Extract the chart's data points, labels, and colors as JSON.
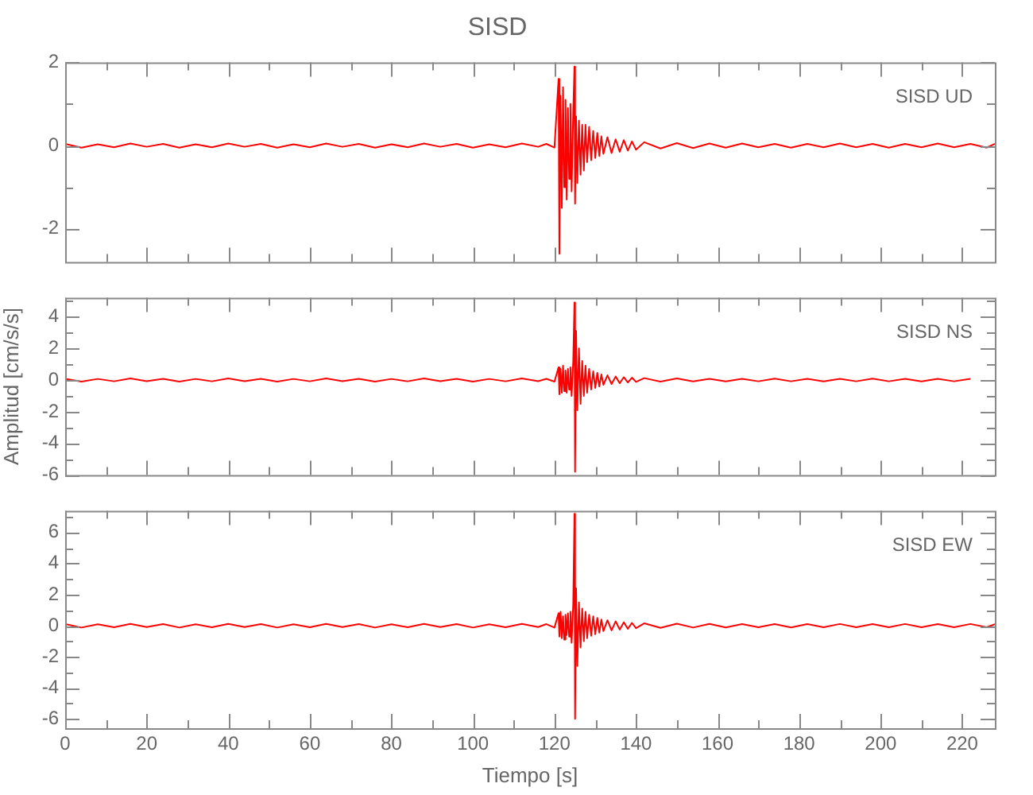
{
  "chart_data": [
    {
      "type": "line",
      "title": "SISD",
      "annotations": [
        "SISD UD"
      ],
      "tick_labels": "y",
      "xlim": [
        0,
        228
      ],
      "xticks": [
        0,
        {
          "value": 10,
          "label": null
        },
        20,
        {
          "value": 30,
          "label": null
        },
        40,
        {
          "value": 50,
          "label": null
        },
        60,
        {
          "value": 70,
          "label": null
        },
        80,
        {
          "value": 90,
          "label": null
        },
        100,
        {
          "value": 110,
          "label": null
        },
        120,
        {
          "value": 130,
          "label": null
        },
        140,
        {
          "value": 150,
          "label": null
        },
        160,
        {
          "value": 170,
          "label": null
        },
        180,
        {
          "value": 190,
          "label": null
        },
        200,
        {
          "value": 210,
          "label": null
        },
        220
      ],
      "ylim": [
        -2.8,
        2.0
      ],
      "yticks": [
        2,
        {
          "value": 1,
          "label": null
        },
        0,
        {
          "value": -1,
          "label": null
        },
        -2
      ],
      "series": [
        {
          "color": "#ff0000",
          "x": [
            0,
            4,
            8,
            12,
            16,
            20,
            24,
            28,
            32,
            36,
            40,
            44,
            48,
            52,
            56,
            60,
            64,
            68,
            72,
            76,
            80,
            84,
            88,
            92,
            96,
            100,
            104,
            108,
            112,
            116,
            118,
            120,
            121,
            121.2,
            121.5,
            121.8,
            122.1,
            122.4,
            122.7,
            123,
            123.3,
            123.6,
            123.9,
            124.2,
            124.6,
            124.9,
            125.05,
            125.3,
            125.6,
            126,
            126.4,
            126.8,
            127.2,
            127.6,
            128,
            128.5,
            129,
            129.5,
            130,
            130.5,
            131,
            131.5,
            132,
            133,
            134,
            135,
            136,
            137,
            138,
            139,
            140,
            142,
            146,
            150,
            154,
            158,
            162,
            166,
            170,
            174,
            178,
            182,
            186,
            190,
            194,
            198,
            202,
            206,
            210,
            214,
            218,
            222,
            226,
            228
          ],
          "values": [
            0.04,
            -0.05,
            0.03,
            -0.04,
            0.05,
            -0.03,
            0.04,
            -0.05,
            0.03,
            -0.04,
            0.05,
            -0.03,
            0.04,
            -0.05,
            0.03,
            -0.04,
            0.05,
            -0.03,
            0.04,
            -0.05,
            0.03,
            -0.04,
            0.05,
            -0.03,
            0.04,
            -0.05,
            0.03,
            -0.04,
            0.05,
            -0.03,
            0.04,
            -0.05,
            1.6,
            -2.6,
            1.2,
            -1.5,
            1.4,
            -1.0,
            1.1,
            -1.3,
            0.9,
            -0.8,
            1.0,
            -1.1,
            0.8,
            1.9,
            -1.4,
            0.7,
            -0.9,
            0.6,
            -0.7,
            0.5,
            -0.6,
            0.5,
            -0.4,
            0.45,
            -0.35,
            0.35,
            -0.3,
            0.3,
            -0.25,
            0.22,
            -0.2,
            0.2,
            -0.18,
            0.15,
            -0.15,
            0.13,
            -0.12,
            0.1,
            -0.1,
            0.08,
            -0.07,
            0.06,
            -0.06,
            0.05,
            -0.05,
            0.05,
            -0.04,
            0.04,
            -0.05,
            0.04,
            -0.04,
            0.05,
            -0.04,
            0.04,
            -0.05,
            0.04,
            -0.04,
            0.05,
            -0.04,
            0.04,
            -0.05,
            0.04
          ]
        }
      ]
    },
    {
      "type": "line",
      "ylabel": "Amplitud [cm/s/s]",
      "annotations": [
        "SISD NS"
      ],
      "tick_labels": "y",
      "xlim": [
        0,
        228
      ],
      "xticks": [
        0,
        {
          "value": 10,
          "label": null
        },
        20,
        {
          "value": 30,
          "label": null
        },
        40,
        {
          "value": 50,
          "label": null
        },
        60,
        {
          "value": 70,
          "label": null
        },
        80,
        {
          "value": 90,
          "label": null
        },
        100,
        {
          "value": 110,
          "label": null
        },
        120,
        {
          "value": 130,
          "label": null
        },
        140,
        {
          "value": 150,
          "label": null
        },
        160,
        {
          "value": 170,
          "label": null
        },
        180,
        {
          "value": 190,
          "label": null
        },
        200,
        {
          "value": 210,
          "label": null
        },
        220
      ],
      "ylim": [
        -6,
        5.2
      ],
      "yticks": [
        {
          "value": 5,
          "label": null
        },
        4,
        {
          "value": 3,
          "label": null
        },
        2,
        {
          "value": 1,
          "label": null
        },
        0,
        {
          "value": -1,
          "label": null
        },
        -2,
        {
          "value": -3,
          "label": null
        },
        -4,
        {
          "value": -5,
          "label": null
        },
        -6
      ],
      "series": [
        {
          "color": "#ff0000",
          "x": [
            0,
            4,
            8,
            12,
            16,
            20,
            24,
            28,
            32,
            36,
            40,
            44,
            48,
            52,
            56,
            60,
            64,
            68,
            72,
            76,
            80,
            84,
            88,
            92,
            96,
            100,
            104,
            108,
            112,
            116,
            118,
            120,
            121,
            121.2,
            121.5,
            121.8,
            122.1,
            122.4,
            122.7,
            123,
            123.3,
            123.6,
            123.9,
            124.2,
            124.6,
            124.9,
            125.05,
            125.3,
            125.6,
            126,
            126.4,
            126.8,
            127.2,
            127.6,
            128,
            128.5,
            129,
            129.5,
            130,
            130.5,
            131,
            131.5,
            132,
            133,
            134,
            135,
            136,
            137,
            138,
            139,
            140,
            142,
            146,
            150,
            154,
            158,
            162,
            166,
            170,
            174,
            178,
            182,
            186,
            190,
            194,
            198,
            202,
            206,
            210,
            214,
            218,
            222
          ],
          "values": [
            0.08,
            -0.1,
            0.07,
            -0.08,
            0.1,
            -0.07,
            0.08,
            -0.1,
            0.07,
            -0.08,
            0.1,
            -0.07,
            0.08,
            -0.1,
            0.07,
            -0.08,
            0.1,
            -0.07,
            0.08,
            -0.1,
            0.07,
            -0.08,
            0.1,
            -0.07,
            0.08,
            -0.1,
            0.07,
            -0.08,
            0.1,
            -0.07,
            0.08,
            -0.1,
            0.8,
            -0.9,
            0.7,
            -0.8,
            0.9,
            -0.7,
            0.6,
            -0.8,
            0.7,
            -0.6,
            0.8,
            -1.0,
            1.2,
            4.9,
            -5.8,
            3.1,
            -1.9,
            2.0,
            -1.5,
            1.2,
            -1.0,
            0.9,
            -0.8,
            0.7,
            -0.6,
            0.55,
            -0.5,
            0.45,
            -0.4,
            0.35,
            -0.3,
            0.3,
            -0.25,
            0.22,
            -0.2,
            0.18,
            -0.15,
            0.15,
            -0.12,
            0.12,
            -0.1,
            0.1,
            -0.09,
            0.08,
            -0.09,
            0.08,
            -0.08,
            0.09,
            -0.08,
            0.08,
            -0.09,
            0.08,
            -0.08,
            0.09,
            -0.08,
            0.08,
            -0.09,
            0.08,
            -0.08,
            0.08
          ]
        }
      ]
    },
    {
      "type": "line",
      "xlabel": "Tiempo [s]",
      "annotations": [
        "SISD EW"
      ],
      "xlim": [
        0,
        228
      ],
      "xticks": [
        0,
        {
          "value": 10,
          "label": null
        },
        20,
        {
          "value": 30,
          "label": null
        },
        40,
        {
          "value": 50,
          "label": null
        },
        60,
        {
          "value": 70,
          "label": null
        },
        80,
        {
          "value": 90,
          "label": null
        },
        100,
        {
          "value": 110,
          "label": null
        },
        120,
        {
          "value": 130,
          "label": null
        },
        140,
        {
          "value": 150,
          "label": null
        },
        160,
        {
          "value": 170,
          "label": null
        },
        180,
        {
          "value": 190,
          "label": null
        },
        200,
        {
          "value": 210,
          "label": null
        },
        220
      ],
      "ylim": [
        -6.6,
        7.4
      ],
      "yticks": [
        {
          "value": 7,
          "label": null
        },
        6,
        {
          "value": 5,
          "label": null
        },
        4,
        {
          "value": 3,
          "label": null
        },
        2,
        {
          "value": 1,
          "label": null
        },
        0,
        {
          "value": -1,
          "label": null
        },
        -2,
        {
          "value": -3,
          "label": null
        },
        -4,
        {
          "value": -5,
          "label": null
        },
        -6
      ],
      "series": [
        {
          "color": "#ff0000",
          "x": [
            0,
            4,
            8,
            12,
            16,
            20,
            24,
            28,
            32,
            36,
            40,
            44,
            48,
            52,
            56,
            60,
            64,
            68,
            72,
            76,
            80,
            84,
            88,
            92,
            96,
            100,
            104,
            108,
            112,
            116,
            118,
            120,
            121,
            121.2,
            121.5,
            121.8,
            122.1,
            122.4,
            122.7,
            123,
            123.3,
            123.6,
            123.9,
            124.2,
            124.6,
            124.9,
            125.05,
            125.3,
            125.6,
            126,
            126.4,
            126.8,
            127.2,
            127.6,
            128,
            128.5,
            129,
            129.5,
            130,
            130.5,
            131,
            131.5,
            132,
            133,
            134,
            135,
            136,
            137,
            138,
            139,
            140,
            142,
            146,
            150,
            154,
            158,
            162,
            166,
            170,
            174,
            178,
            182,
            186,
            190,
            194,
            198,
            202,
            206,
            210,
            214,
            218,
            222,
            226,
            228
          ],
          "values": [
            0.1,
            -0.12,
            0.09,
            -0.1,
            0.12,
            -0.09,
            0.1,
            -0.12,
            0.09,
            -0.1,
            0.12,
            -0.09,
            0.1,
            -0.12,
            0.09,
            -0.1,
            0.12,
            -0.09,
            0.1,
            -0.12,
            0.09,
            -0.1,
            0.12,
            -0.09,
            0.1,
            -0.12,
            0.09,
            -0.1,
            0.12,
            -0.09,
            0.1,
            -0.12,
            0.8,
            -0.7,
            0.9,
            -0.8,
            0.6,
            -0.9,
            0.7,
            -0.6,
            0.8,
            -0.7,
            0.9,
            -1.1,
            1.4,
            7.2,
            -6.0,
            2.4,
            -2.6,
            1.5,
            -1.4,
            1.1,
            -1.0,
            0.9,
            -0.8,
            0.7,
            -0.65,
            0.6,
            -0.55,
            0.5,
            -0.45,
            0.4,
            -0.35,
            0.35,
            -0.3,
            0.28,
            -0.25,
            0.22,
            -0.2,
            0.18,
            -0.16,
            0.15,
            -0.14,
            0.13,
            -0.12,
            0.12,
            -0.11,
            0.1,
            -0.1,
            0.1,
            -0.11,
            0.1,
            -0.1,
            0.11,
            -0.1,
            0.1,
            -0.1,
            0.11,
            -0.1,
            0.1,
            -0.1,
            0.11,
            -0.1,
            0.1
          ]
        }
      ]
    }
  ]
}
